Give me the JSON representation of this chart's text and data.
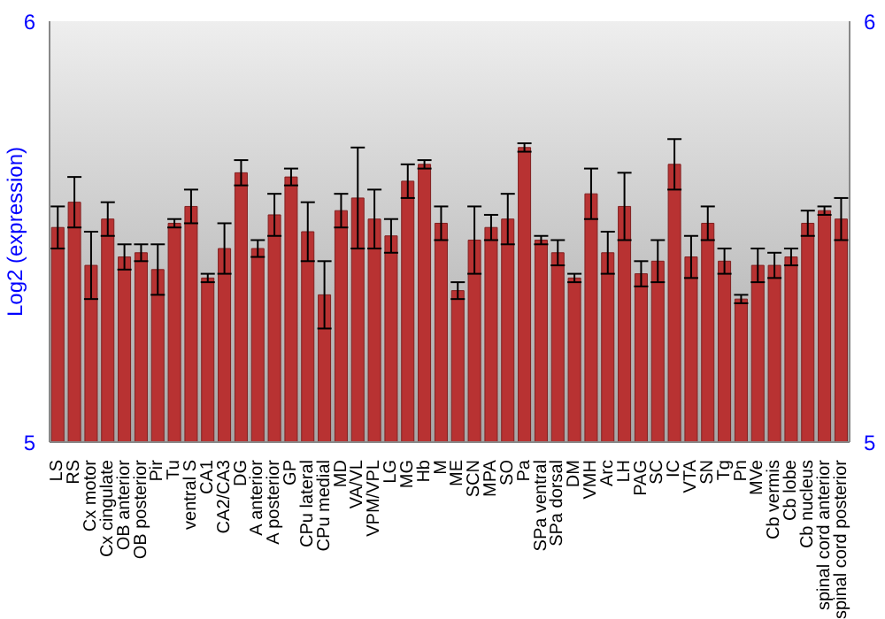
{
  "chart_data": {
    "type": "bar",
    "ylabel": "Log2 (expression)",
    "categories": [
      "LS",
      "RS",
      "Cx motor",
      "Cx cingulate",
      "OB anterior",
      "OB posterior",
      "Pir",
      "Tu",
      "ventral S",
      "CA1",
      "CA2/CA3",
      "DG",
      "A anterior",
      "A posterior",
      "GP",
      "CPu lateral",
      "CPu medial",
      "MD",
      "VA/VL",
      "VPM/VPL",
      "LG",
      "MG",
      "Hb",
      "M",
      "ME",
      "SCN",
      "MPA",
      "SO",
      "Pa",
      "SPa ventral",
      "SPa dorsal",
      "DM",
      "VMH",
      "Arc",
      "LH",
      "PAG",
      "SC",
      "IC",
      "VTA",
      "SN",
      "Tg",
      "Pn",
      "MVe",
      "Cb vermis",
      "Cb lobe",
      "Cb nucleus",
      "spinal cord anterior",
      "spinal cord posterior"
    ],
    "series": [
      {
        "color": "#b83232",
        "values": [
          5.51,
          5.57,
          5.42,
          5.53,
          5.44,
          5.45,
          5.41,
          5.52,
          5.56,
          5.39,
          5.46,
          5.64,
          5.46,
          5.54,
          5.63,
          5.5,
          5.35,
          5.55,
          5.58,
          5.53,
          5.49,
          5.62,
          5.66,
          5.52,
          5.36,
          5.48,
          5.51,
          5.53,
          5.7,
          5.48,
          5.45,
          5.39,
          5.59,
          5.45,
          5.56,
          5.4,
          5.43,
          5.66,
          5.44,
          5.52,
          5.43,
          5.34,
          5.42,
          5.42,
          5.44,
          5.52,
          5.55,
          5.53
        ],
        "errors": [
          0.05,
          0.06,
          0.08,
          0.04,
          0.03,
          0.02,
          0.06,
          0.01,
          0.04,
          0.01,
          0.06,
          0.03,
          0.02,
          0.05,
          0.02,
          0.07,
          0.08,
          0.04,
          0.12,
          0.07,
          0.04,
          0.04,
          0.01,
          0.04,
          0.02,
          0.08,
          0.03,
          0.06,
          0.01,
          0.01,
          0.03,
          0.01,
          0.06,
          0.05,
          0.08,
          0.03,
          0.05,
          0.06,
          0.05,
          0.04,
          0.03,
          0.01,
          0.04,
          0.03,
          0.02,
          0.03,
          0.01,
          0.05
        ]
      }
    ],
    "ylim": [
      5,
      6
    ],
    "yticks": [
      5,
      6
    ],
    "y2lim": [
      5,
      6
    ],
    "y2ticks": [
      5,
      6
    ],
    "grid": false,
    "legend": false
  }
}
